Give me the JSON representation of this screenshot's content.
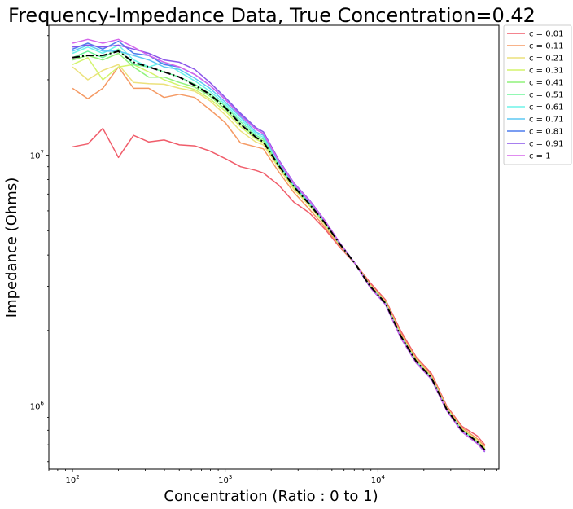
{
  "chart_data": {
    "type": "line",
    "title": "Frequency-Impedance Data, True Concentration=0.42",
    "xlabel": "Concentration (Ratio : 0 to 1)",
    "ylabel": "Impedance (Ohms)",
    "xscale": "log",
    "yscale": "log",
    "xlim": [
      70,
      62000
    ],
    "ylim": [
      560000,
      33000000
    ],
    "grid": false,
    "legend_position": "outside-top-right",
    "x_tick_labels": [
      {
        "value": 100,
        "base": "10",
        "exp": "2"
      },
      {
        "value": 1000,
        "base": "10",
        "exp": "3"
      },
      {
        "value": 10000,
        "base": "10",
        "exp": "4"
      }
    ],
    "y_tick_labels": [
      {
        "value": 1000000,
        "base": "10",
        "exp": "6"
      },
      {
        "value": 10000000,
        "base": "10",
        "exp": "7"
      }
    ],
    "x": [
      100,
      126,
      158,
      200,
      251,
      316,
      398,
      501,
      631,
      794,
      1000,
      1259,
      1585,
      1778,
      2239,
      2818,
      3548,
      4467,
      5623,
      7079,
      8913,
      11220,
      14125,
      17783,
      22387,
      28184,
      35481,
      44668,
      50119
    ],
    "series": [
      {
        "name": "c = 0.01",
        "color": "#f05c6a",
        "values": [
          10800000,
          11100000,
          12800000,
          9800000,
          12000000,
          11300000,
          11500000,
          11000000,
          10900000,
          10400000,
          9700000,
          9000000,
          8700000,
          8500000,
          7600000,
          6500000,
          5900000,
          5100000,
          4300000,
          3700000,
          3100000,
          2650000,
          1990000,
          1570000,
          1350000,
          1000000,
          830000,
          760000,
          700000
        ]
      },
      {
        "name": "c = 0.11",
        "color": "#f59a64",
        "values": [
          18500000,
          16800000,
          18500000,
          22500000,
          18500000,
          18500000,
          17000000,
          17500000,
          17000000,
          15200000,
          13500000,
          11200000,
          10800000,
          10600000,
          8600000,
          7100000,
          6100000,
          5200000,
          4350000,
          3700000,
          3050000,
          2620000,
          1950000,
          1550000,
          1330000,
          990000,
          820000,
          740000,
          690000
        ]
      },
      {
        "name": "c = 0.21",
        "color": "#ece17b",
        "values": [
          22500000,
          20000000,
          21800000,
          23000000,
          19500000,
          19300000,
          19200000,
          18500000,
          18000000,
          16500000,
          14500000,
          12500000,
          11300000,
          11000000,
          8900000,
          7300000,
          6300000,
          5300000,
          4400000,
          3700000,
          3030000,
          2600000,
          1920000,
          1530000,
          1310000,
          980000,
          810000,
          730000,
          680000
        ]
      },
      {
        "name": "c = 0.31",
        "color": "#d3f46c",
        "values": [
          23000000,
          24500000,
          20000000,
          22500000,
          23000000,
          21500000,
          20000000,
          19000000,
          18300000,
          16800000,
          15000000,
          13000000,
          11600000,
          11200000,
          9000000,
          7400000,
          6350000,
          5350000,
          4420000,
          3700000,
          3010000,
          2580000,
          1910000,
          1520000,
          1300000,
          975000,
          805000,
          725000,
          675000
        ]
      },
      {
        "name": "c = 0.41",
        "color": "#8ff27a",
        "values": [
          24000000,
          25000000,
          24000000,
          25500000,
          22500000,
          20500000,
          20500000,
          19500000,
          18700000,
          17200000,
          15300000,
          13300000,
          11800000,
          11400000,
          9100000,
          7500000,
          6400000,
          5400000,
          4430000,
          3700000,
          3000000,
          2570000,
          1900000,
          1510000,
          1295000,
          970000,
          800000,
          720000,
          670000
        ]
      },
      {
        "name": "c = 0.51",
        "color": "#6ef59a",
        "values": [
          24500000,
          26000000,
          24500000,
          26500000,
          23000000,
          22500000,
          21500000,
          20500000,
          19200000,
          17600000,
          15700000,
          13600000,
          12000000,
          11600000,
          9200000,
          7550000,
          6450000,
          5420000,
          4440000,
          3700000,
          2990000,
          2560000,
          1890000,
          1505000,
          1290000,
          968000,
          798000,
          718000,
          668000
        ]
      },
      {
        "name": "c = 0.61",
        "color": "#6ff4e9",
        "values": [
          25500000,
          27000000,
          25500000,
          27500000,
          24000000,
          22500000,
          23500000,
          21500000,
          19800000,
          18000000,
          16000000,
          13900000,
          12200000,
          11800000,
          9300000,
          7600000,
          6500000,
          5450000,
          4450000,
          3700000,
          2980000,
          2550000,
          1880000,
          1500000,
          1285000,
          965000,
          795000,
          715000,
          665000
        ]
      },
      {
        "name": "c = 0.71",
        "color": "#5fc8f3",
        "values": [
          26000000,
          27500000,
          26000000,
          26000000,
          25000000,
          24000000,
          22500000,
          22000000,
          20300000,
          18500000,
          16300000,
          14200000,
          12400000,
          12000000,
          9400000,
          7650000,
          6550000,
          5470000,
          4460000,
          3700000,
          2975000,
          2545000,
          1875000,
          1495000,
          1282000,
          962000,
          792000,
          712000,
          662000
        ]
      },
      {
        "name": "c = 0.81",
        "color": "#4f7ded",
        "values": [
          26500000,
          28000000,
          26500000,
          28500000,
          25500000,
          25000000,
          23000000,
          22500000,
          21000000,
          19000000,
          16700000,
          14500000,
          12700000,
          12200000,
          9500000,
          7700000,
          6600000,
          5500000,
          4470000,
          3700000,
          2970000,
          2540000,
          1870000,
          1490000,
          1280000,
          960000,
          790000,
          710000,
          660000
        ]
      },
      {
        "name": "c = 0.91",
        "color": "#8a55ea",
        "values": [
          27000000,
          27500000,
          27000000,
          27500000,
          26500000,
          25500000,
          24000000,
          23500000,
          22000000,
          19500000,
          17000000,
          14700000,
          12900000,
          12400000,
          9600000,
          7750000,
          6650000,
          5520000,
          4480000,
          3700000,
          2965000,
          2535000,
          1865000,
          1485000,
          1278000,
          958000,
          788000,
          708000,
          655000
        ]
      },
      {
        "name": "c = 1",
        "color": "#d566ec",
        "values": [
          28000000,
          29000000,
          28000000,
          29000000,
          27000000,
          25000000,
          23500000,
          22500000,
          21000000,
          19000000,
          16700000,
          14400000,
          12700000,
          12200000,
          9500000,
          7700000,
          6600000,
          5500000,
          4470000,
          3700000,
          2970000,
          2540000,
          1870000,
          1490000,
          1280000,
          960000,
          790000,
          710000,
          660000
        ]
      },
      {
        "color": "#000000",
        "dash": "dashdot",
        "values": [
          24500000,
          25000000,
          25000000,
          26000000,
          23500000,
          22500000,
          21500000,
          20500000,
          19000000,
          17500000,
          15500000,
          13300000,
          11800000,
          11300000,
          9100000,
          7500000,
          6400000,
          5400000,
          4430000,
          3700000,
          3000000,
          2570000,
          1900000,
          1510000,
          1295000,
          970000,
          800000,
          720000,
          668000
        ]
      }
    ]
  }
}
